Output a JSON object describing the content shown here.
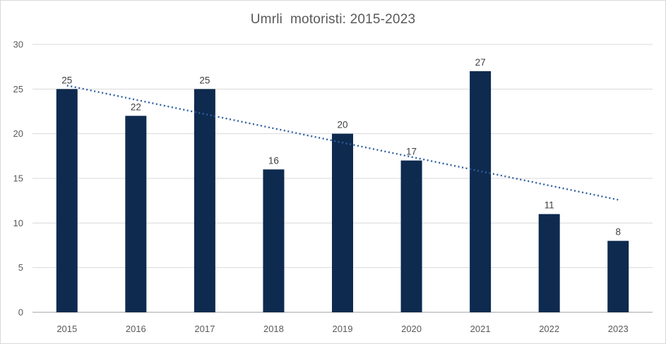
{
  "chart_data": {
    "type": "bar",
    "title": "Umrli  motoristi: 2015-2023",
    "categories": [
      "2015",
      "2016",
      "2017",
      "2018",
      "2019",
      "2020",
      "2021",
      "2022",
      "2023"
    ],
    "values": [
      25,
      22,
      25,
      16,
      20,
      17,
      27,
      11,
      8
    ],
    "xlabel": "",
    "ylabel": "",
    "ylim": [
      0,
      30
    ],
    "ytick_step": 5,
    "grid": true,
    "legend": "none",
    "bar_color": "#0e2a4f",
    "data_label_color": "#404040",
    "axis_label_color": "#595959",
    "gridline_color": "#d9d9d9",
    "axis_line_color": "#bfbfbf",
    "title_color": "#595959",
    "trendline": {
      "type": "linear",
      "style": "dotted",
      "color": "#2e5f9e"
    }
  }
}
